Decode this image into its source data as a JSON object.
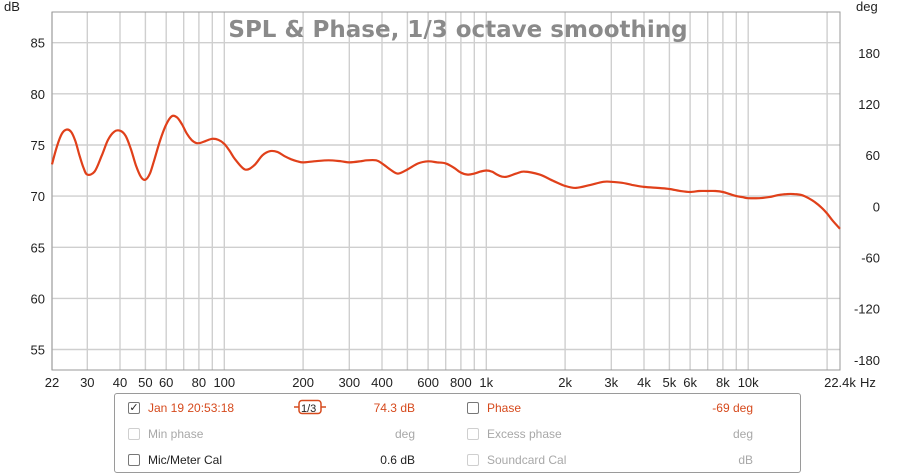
{
  "chart_data": {
    "type": "line",
    "title": "SPL & Phase, 1/3 octave smoothing",
    "y_left_unit": "dB",
    "y_right_unit": "deg",
    "x_unit": "Hz",
    "x_scale": "log",
    "xlim": [
      22,
      22400
    ],
    "ylim_left": [
      53,
      88
    ],
    "ylim_right": [
      -192,
      228
    ],
    "y_left_ticks": [
      55,
      60,
      65,
      70,
      75,
      80,
      85
    ],
    "y_right_ticks": [
      -180,
      -120,
      -60,
      0,
      60,
      120,
      180
    ],
    "x_ticks": [
      {
        "value": 22,
        "label": "22"
      },
      {
        "value": 30,
        "label": "30"
      },
      {
        "value": 40,
        "label": "40"
      },
      {
        "value": 50,
        "label": "50"
      },
      {
        "value": 60,
        "label": "60"
      },
      {
        "value": 80,
        "label": "80"
      },
      {
        "value": 100,
        "label": "100"
      },
      {
        "value": 200,
        "label": "200"
      },
      {
        "value": 300,
        "label": "300"
      },
      {
        "value": 400,
        "label": "400"
      },
      {
        "value": 600,
        "label": "600"
      },
      {
        "value": 800,
        "label": "800"
      },
      {
        "value": 1000,
        "label": "1k"
      },
      {
        "value": 2000,
        "label": "2k"
      },
      {
        "value": 3000,
        "label": "3k"
      },
      {
        "value": 4000,
        "label": "4k"
      },
      {
        "value": 5000,
        "label": "5k"
      },
      {
        "value": 6000,
        "label": "6k"
      },
      {
        "value": 8000,
        "label": "8k"
      },
      {
        "value": 10000,
        "label": "10k"
      },
      {
        "value": 22400,
        "label": "22.4k"
      }
    ],
    "x_gridlines": [
      22,
      30,
      40,
      50,
      60,
      70,
      80,
      90,
      100,
      200,
      300,
      400,
      500,
      600,
      700,
      800,
      900,
      1000,
      2000,
      3000,
      4000,
      5000,
      6000,
      7000,
      8000,
      9000,
      10000,
      20000
    ],
    "grid": true,
    "series": [
      {
        "name": "Jan 19 20:53:18",
        "color": "#e0401a",
        "x": [
          22,
          23,
          24,
          25,
          26,
          27,
          28,
          29,
          30,
          32,
          34,
          36,
          38,
          40,
          42,
          44,
          46,
          48,
          50,
          52,
          54,
          57,
          60,
          63,
          66,
          69,
          72,
          75,
          78,
          81,
          85,
          90,
          95,
          100,
          105,
          110,
          120,
          130,
          140,
          150,
          160,
          170,
          180,
          190,
          200,
          220,
          250,
          280,
          300,
          330,
          350,
          380,
          400,
          430,
          460,
          500,
          550,
          600,
          650,
          700,
          750,
          800,
          850,
          900,
          950,
          1000,
          1050,
          1100,
          1150,
          1200,
          1300,
          1400,
          1600,
          1800,
          2000,
          2200,
          2500,
          2800,
          3000,
          3300,
          3600,
          4000,
          4500,
          5000,
          5500,
          6000,
          6500,
          7000,
          7500,
          8000,
          8500,
          9000,
          9500,
          10000,
          11000,
          12000,
          13000,
          14000,
          15000,
          16000,
          17000,
          18000,
          19000,
          20000,
          21000,
          22400
        ],
        "y": [
          73.1,
          74.9,
          76.1,
          76.5,
          76.3,
          75.4,
          74.0,
          72.8,
          72.1,
          72.4,
          73.9,
          75.5,
          76.3,
          76.4,
          75.9,
          74.6,
          73.0,
          71.9,
          71.6,
          72.2,
          73.5,
          75.5,
          77.0,
          77.8,
          77.7,
          77.0,
          76.1,
          75.5,
          75.2,
          75.2,
          75.4,
          75.6,
          75.5,
          75.1,
          74.4,
          73.6,
          72.6,
          73.0,
          74.0,
          74.4,
          74.3,
          73.9,
          73.6,
          73.4,
          73.3,
          73.4,
          73.5,
          73.4,
          73.3,
          73.4,
          73.5,
          73.5,
          73.2,
          72.6,
          72.2,
          72.6,
          73.2,
          73.4,
          73.3,
          73.2,
          72.8,
          72.3,
          72.1,
          72.2,
          72.4,
          72.5,
          72.4,
          72.1,
          71.9,
          71.9,
          72.2,
          72.4,
          72.1,
          71.5,
          71.0,
          70.8,
          71.1,
          71.4,
          71.4,
          71.3,
          71.1,
          70.9,
          70.8,
          70.7,
          70.5,
          70.4,
          70.5,
          70.5,
          70.5,
          70.4,
          70.2,
          70.0,
          69.9,
          69.8,
          69.8,
          69.9,
          70.1,
          70.2,
          70.2,
          70.1,
          69.8,
          69.4,
          68.9,
          68.3,
          67.6,
          66.8
        ]
      }
    ]
  },
  "legend": {
    "rows": [
      {
        "checked": true,
        "label": "Jan 19 20:53:18",
        "smoothing": "1/3",
        "value": "74.3 dB",
        "phase_label": "Phase",
        "phase_value": "-69 deg"
      },
      {
        "label": "Min phase",
        "unit": "deg",
        "excess_label": "Excess phase",
        "excess_unit": "deg"
      },
      {
        "label": "Mic/Meter Cal",
        "value": "0.6 dB",
        "soundcard_label": "Soundcard Cal",
        "soundcard_unit": "dB"
      }
    ]
  }
}
